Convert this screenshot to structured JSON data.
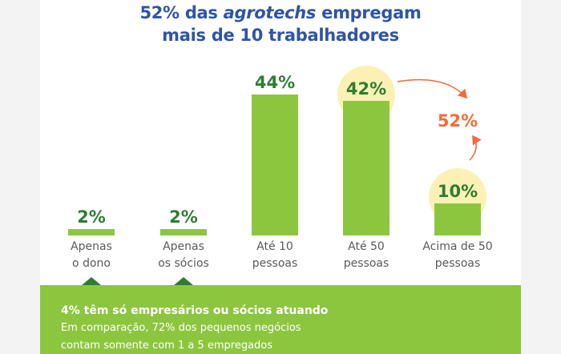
{
  "header": {
    "title_part1": "52% das ",
    "title_italic": "agrotechs",
    "title_part2": " empregam",
    "title_line2": "mais de 10 trabalhadores"
  },
  "chart_data": {
    "type": "bar",
    "categories": [
      "Apenas o dono",
      "Apenas os sócios",
      "Até 10 pessoas",
      "Até 50 pessoas",
      "Acima de 50 pessoas"
    ],
    "category_lines": [
      [
        "Apenas",
        "o dono"
      ],
      [
        "Apenas",
        "os sócios"
      ],
      [
        "Até 10",
        "pessoas"
      ],
      [
        "Até 50",
        "pessoas"
      ],
      [
        "Acima de 50",
        "pessoas"
      ]
    ],
    "values": [
      2,
      2,
      44,
      42,
      10
    ],
    "data_labels": [
      "2%",
      "2%",
      "44%",
      "42%",
      "10%"
    ],
    "ylim": [
      0,
      44
    ],
    "annotation": "52%",
    "colors": {
      "bar": "#8cc63f",
      "value_text": "#2f7d32",
      "highlight": "#fbf1b4",
      "annotation": "#f26b3a",
      "arrow": "#f26b3a"
    }
  },
  "footer": {
    "headline": "4% têm só empresários ou sócios atuando",
    "line1": "Em comparação, 72% dos pequenos negócios",
    "line2": "contam somente com 1 a 5 empregados",
    "colors": {
      "band": "#8cc63f"
    }
  }
}
